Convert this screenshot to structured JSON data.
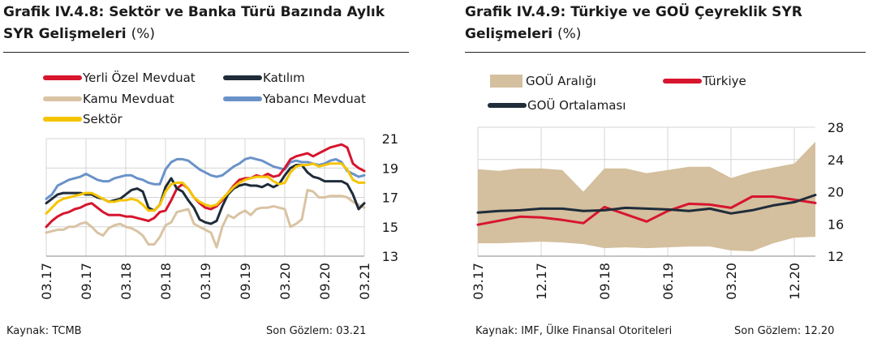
{
  "left": {
    "title_line1": "Grafik IV.4.8: Sektör ve Banka Türü Bazında Aylık",
    "title_line2": "SYR Gelişmeleri",
    "title_unit": "(%)",
    "source": "Kaynak: TCMB",
    "last_obs": "Son Gözlem: 03.21"
  },
  "right": {
    "title_line1": "Grafik IV.4.9: Türkiye ve GOÜ Çeyreklik SYR",
    "title_line2": "Gelişmeleri",
    "title_unit": "(%)",
    "source": "Kaynak: IMF, Ülke Finansal Otoriteleri",
    "last_obs": "Son Gözlem: 12.20"
  },
  "chart_data": [
    {
      "type": "line",
      "ylim": [
        13,
        21
      ],
      "yticks": [
        13,
        15,
        17,
        19,
        21
      ],
      "grid": true,
      "legend_position": "top",
      "x_tick_labels": [
        "03.17",
        "09.17",
        "03.18",
        "09.18",
        "03.19",
        "09.19",
        "03.20",
        "09.20",
        "03.21"
      ],
      "series": [
        {
          "name": "Yerli Özel Mevduat",
          "color": "#d7152e",
          "values": [
            15.0,
            15.4,
            15.7,
            15.9,
            16.0,
            16.2,
            16.3,
            16.5,
            16.6,
            16.3,
            16.0,
            15.8,
            15.8,
            15.8,
            15.7,
            15.7,
            15.6,
            15.5,
            15.4,
            15.6,
            16.0,
            16.1,
            16.8,
            17.6,
            17.9,
            17.6,
            17.0,
            16.6,
            16.3,
            16.2,
            16.4,
            16.8,
            17.3,
            17.8,
            18.2,
            18.3,
            18.3,
            18.5,
            18.4,
            18.6,
            18.4,
            18.5,
            19.0,
            19.6,
            19.8,
            19.9,
            20.0,
            19.8,
            20.0,
            20.2,
            20.4,
            20.5,
            20.6,
            20.4,
            19.3,
            19.0,
            18.8
          ]
        },
        {
          "name": "Katılım",
          "color": "#1f2c3a",
          "values": [
            16.6,
            16.9,
            17.2,
            17.3,
            17.3,
            17.3,
            17.3,
            17.2,
            17.2,
            17.0,
            16.9,
            16.7,
            16.8,
            16.9,
            17.2,
            17.5,
            17.6,
            17.4,
            16.3,
            16.1,
            16.5,
            17.7,
            18.3,
            17.6,
            17.4,
            16.8,
            16.3,
            15.5,
            15.3,
            15.2,
            15.4,
            16.4,
            17.2,
            17.6,
            17.8,
            17.9,
            17.8,
            17.8,
            17.7,
            17.9,
            17.7,
            17.9,
            18.5,
            19.0,
            19.2,
            19.2,
            18.7,
            18.4,
            18.3,
            18.1,
            18.1,
            18.1,
            18.1,
            17.9,
            17.2,
            16.2,
            16.6
          ]
        },
        {
          "name": "Kamu Mevduat",
          "color": "#d9c3a3",
          "values": [
            14.6,
            14.7,
            14.8,
            14.8,
            15.0,
            15.0,
            15.2,
            15.3,
            15.0,
            14.6,
            14.4,
            14.9,
            15.1,
            15.2,
            15.0,
            14.9,
            14.7,
            14.4,
            13.8,
            13.8,
            14.3,
            15.1,
            15.3,
            16.0,
            16.1,
            16.2,
            15.2,
            15.0,
            14.8,
            14.6,
            13.6,
            15.0,
            15.8,
            15.6,
            15.9,
            16.1,
            15.8,
            16.2,
            16.3,
            16.3,
            16.4,
            16.3,
            16.2,
            15.0,
            15.2,
            15.5,
            17.5,
            17.4,
            17.0,
            17.0,
            17.1,
            17.1,
            17.1,
            17.0,
            16.7,
            16.5,
            16.3
          ]
        },
        {
          "name": "Yabancı Mevduat",
          "color": "#6a92c8",
          "values": [
            16.9,
            17.2,
            17.8,
            18.0,
            18.2,
            18.3,
            18.4,
            18.6,
            18.4,
            18.2,
            18.1,
            18.1,
            18.3,
            18.4,
            18.5,
            18.5,
            18.3,
            18.2,
            18.0,
            17.9,
            17.9,
            18.9,
            19.4,
            19.6,
            19.6,
            19.5,
            19.2,
            18.9,
            18.7,
            18.5,
            18.4,
            18.5,
            18.8,
            19.1,
            19.3,
            19.6,
            19.7,
            19.6,
            19.5,
            19.3,
            19.1,
            19.0,
            18.9,
            19.4,
            19.5,
            19.4,
            19.4,
            19.3,
            19.2,
            19.3,
            19.5,
            19.6,
            19.4,
            18.8,
            18.6,
            18.4,
            18.5
          ]
        },
        {
          "name": "Sektör",
          "color": "#f5c400",
          "values": [
            15.9,
            16.3,
            16.7,
            16.9,
            17.0,
            17.1,
            17.2,
            17.3,
            17.3,
            17.1,
            16.9,
            16.7,
            16.7,
            16.8,
            16.8,
            16.9,
            16.8,
            16.5,
            16.1,
            16.1,
            16.5,
            17.4,
            17.9,
            18.0,
            18.0,
            17.6,
            17.0,
            16.7,
            16.5,
            16.4,
            16.5,
            16.9,
            17.3,
            17.7,
            18.0,
            18.2,
            18.3,
            18.4,
            18.4,
            18.4,
            18.1,
            17.9,
            18.0,
            18.7,
            19.1,
            19.2,
            19.2,
            19.3,
            19.1,
            19.2,
            19.3,
            19.3,
            19.3,
            18.9,
            18.2,
            18.0,
            18.0
          ]
        }
      ]
    },
    {
      "type": "line",
      "ylim": [
        12,
        28
      ],
      "yticks": [
        12,
        16,
        20,
        24,
        28
      ],
      "grid": true,
      "legend_position": "top",
      "x_tick_labels": [
        "03.17",
        "12.17",
        "09.18",
        "06.19",
        "03.20",
        "12.20"
      ],
      "range_band": {
        "name": "GOÜ Aralığı",
        "color": "#d4bf9e",
        "low": [
          13.6,
          13.6,
          13.7,
          13.8,
          13.7,
          13.5,
          13.0,
          13.1,
          13.0,
          13.1,
          13.2,
          13.2,
          12.7,
          12.6,
          13.6,
          14.3,
          14.4
        ],
        "high": [
          22.8,
          22.6,
          22.9,
          22.9,
          22.7,
          20.0,
          22.9,
          22.9,
          22.3,
          22.7,
          23.1,
          23.1,
          21.7,
          22.5,
          23.0,
          23.5,
          26.2
        ]
      },
      "series": [
        {
          "name": "Türkiye",
          "color": "#d7152e",
          "values": [
            15.9,
            16.4,
            16.9,
            16.8,
            16.5,
            16.1,
            18.1,
            17.2,
            16.3,
            17.6,
            18.5,
            18.4,
            18.0,
            19.4,
            19.4,
            19.0,
            18.6
          ]
        },
        {
          "name": "GOÜ Ortalaması",
          "color": "#1f2c3a",
          "values": [
            17.4,
            17.6,
            17.7,
            17.9,
            17.9,
            17.6,
            17.7,
            18.0,
            17.9,
            17.8,
            17.6,
            17.9,
            17.3,
            17.7,
            18.3,
            18.7,
            19.6
          ]
        }
      ]
    }
  ]
}
